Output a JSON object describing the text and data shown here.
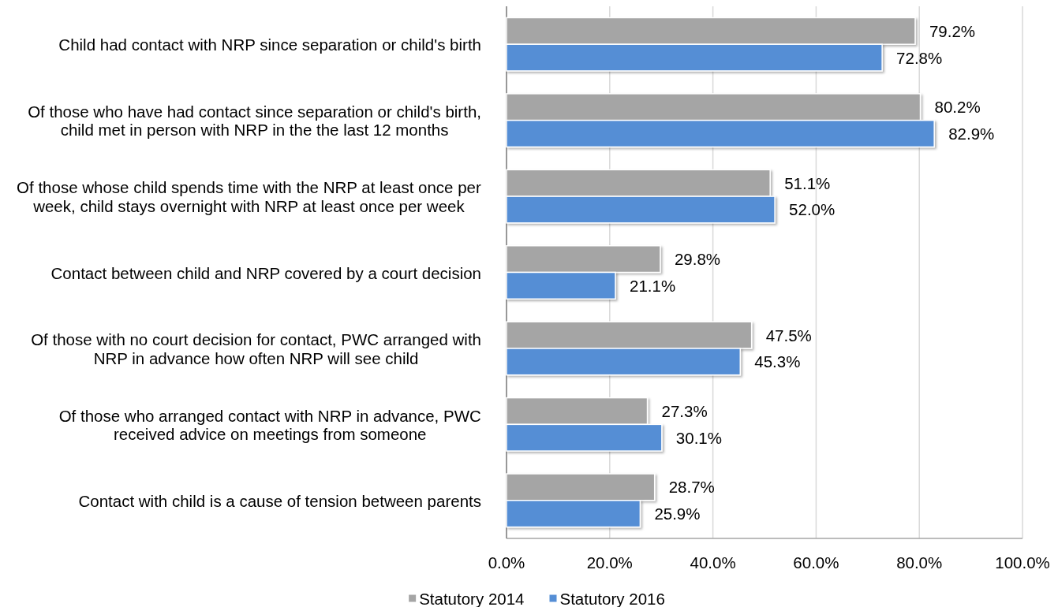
{
  "chart_data": {
    "type": "bar",
    "orientation": "horizontal",
    "categories": [
      "Child had contact with NRP since separation or child's birth",
      "Of those who have had contact since separation or child's birth,\nchild met in person with NRP in the the last 12 months",
      "Of those whose child spends time with the NRP at least once per\nweek, child stays overnight with NRP at least once per week",
      "Contact between child and NRP covered by a court decision",
      "Of those with no court decision for contact, PWC arranged with\nNRP in advance how often NRP will see child",
      "Of those who arranged contact with NRP in advance, PWC\nreceived advice on meetings from someone",
      "Contact with child is a cause of tension between parents"
    ],
    "series": [
      {
        "name": "Statutory 2014",
        "color": "#a5a5a5",
        "values": [
          79.2,
          80.2,
          51.1,
          29.8,
          47.5,
          27.3,
          28.7
        ],
        "value_labels": [
          "79.2%",
          "80.2%",
          "51.1%",
          "29.8%",
          "47.5%",
          "27.3%",
          "28.7%"
        ]
      },
      {
        "name": "Statutory 2016",
        "color": "#558ed5",
        "values": [
          72.8,
          82.9,
          52.0,
          21.1,
          45.3,
          30.1,
          25.9
        ],
        "value_labels": [
          "72.8%",
          "82.9%",
          "52.0%",
          "21.1%",
          "45.3%",
          "30.1%",
          "25.9%"
        ]
      }
    ],
    "xlim": [
      0,
      100
    ],
    "xticks": [
      {
        "value": 0,
        "label": "0.0%"
      },
      {
        "value": 20,
        "label": "20.0%"
      },
      {
        "value": 40,
        "label": "40.0%"
      },
      {
        "value": 60,
        "label": "60.0%"
      },
      {
        "value": 80,
        "label": "80.0%"
      },
      {
        "value": 100,
        "label": "100.0%"
      }
    ],
    "grid": "x",
    "legend": "bottom"
  }
}
